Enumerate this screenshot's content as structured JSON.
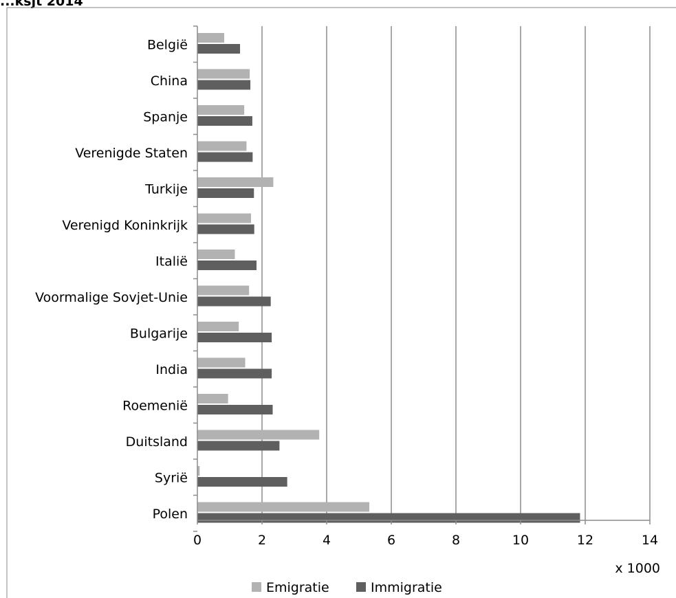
{
  "chart_data": {
    "type": "bar",
    "orientation": "horizontal",
    "title": "...ksjt 2014",
    "categories": [
      "België",
      "China",
      "Spanje",
      "Verenigde Staten",
      "Turkije",
      "Verenigd Koninkrijk",
      "Italië",
      "Voormalige Sovjet-Unie",
      "Bulgarije",
      "India",
      "Roemenië",
      "Duitsland",
      "Syrië",
      "Polen"
    ],
    "series": [
      {
        "name": "Emigratie",
        "color": "#b2b2b2",
        "values": [
          0.83,
          1.62,
          1.45,
          1.52,
          2.35,
          1.66,
          1.16,
          1.6,
          1.28,
          1.48,
          0.95,
          3.77,
          0.07,
          5.32
        ]
      },
      {
        "name": "Immigratie",
        "color": "#5f5f5f",
        "values": [
          1.32,
          1.64,
          1.7,
          1.71,
          1.75,
          1.76,
          1.83,
          2.27,
          2.3,
          2.3,
          2.33,
          2.54,
          2.78,
          11.84
        ]
      }
    ],
    "xlim": [
      0,
      14
    ],
    "xticks": [
      "0",
      "2",
      "4",
      "6",
      "8",
      "10",
      "12",
      "14"
    ],
    "unit_label": "x 1000",
    "grid": "vertical",
    "legend_position": "bottom"
  }
}
